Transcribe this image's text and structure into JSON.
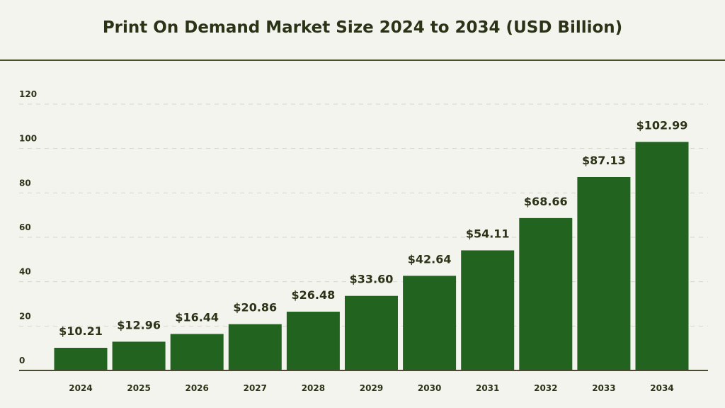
{
  "chart_data": {
    "type": "bar",
    "title": "Print On Demand Market Size 2024 to 2034 (USD Billion)",
    "categories": [
      "2024",
      "2025",
      "2026",
      "2027",
      "2028",
      "2029",
      "2030",
      "2031",
      "2032",
      "2033",
      "2034"
    ],
    "values": [
      10.21,
      12.96,
      16.44,
      20.86,
      26.48,
      33.6,
      42.64,
      54.11,
      68.66,
      87.13,
      102.99
    ],
    "data_labels": [
      "$10.21",
      "$12.96",
      "$16.44",
      "$20.86",
      "$26.48",
      "$33.60",
      "$42.64",
      "$54.11",
      "$68.66",
      "$87.13",
      "$102.99"
    ],
    "yticks": [
      0,
      20,
      40,
      60,
      80,
      100,
      120
    ],
    "ylim": [
      0,
      120
    ],
    "xlabel": "",
    "ylabel": "",
    "grid": "horizontal dashed",
    "bar_color": "#236320",
    "text_color": "#2c3418",
    "background": "#f4f4ef"
  }
}
